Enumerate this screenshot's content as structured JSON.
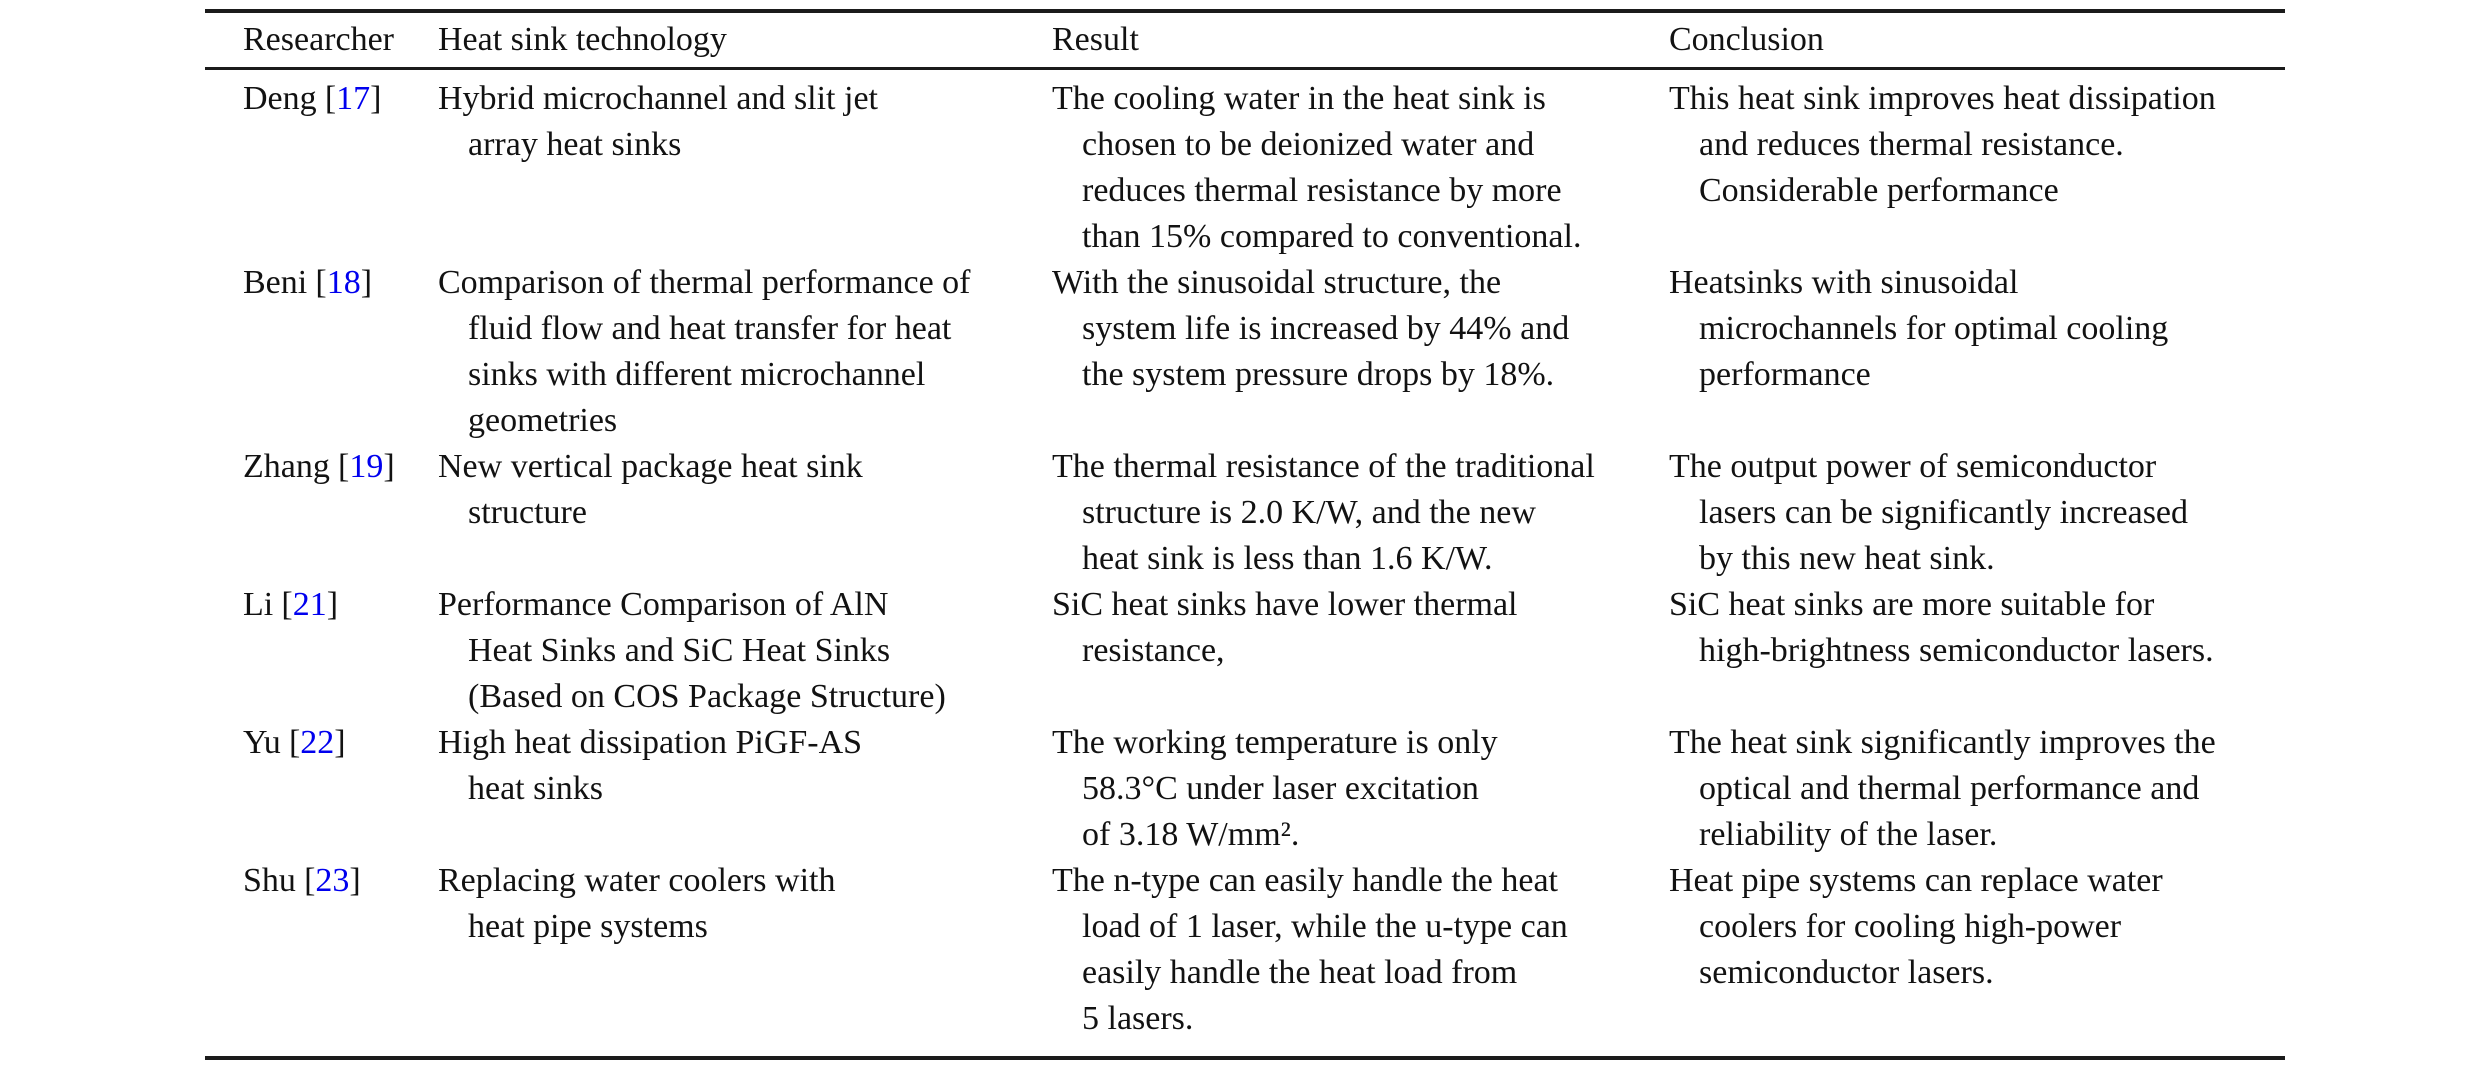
{
  "colors": {
    "reference_link": "#0000EE",
    "text": "#121212",
    "rule": "#1b1b1b"
  },
  "table": {
    "columns": [
      "Researcher",
      "Heat sink technology",
      "Result",
      "Conclusion"
    ],
    "ref_bracket_open": "[",
    "ref_bracket_close": "]",
    "rows": [
      {
        "researcher": "Deng",
        "ref": "17",
        "technology_lines": [
          "Hybrid microchannel and slit jet",
          "array heat sinks"
        ],
        "result_lines": [
          "The cooling water in the heat sink is",
          "chosen to be deionized water and",
          "reduces thermal resistance by more",
          "than 15% compared to conventional."
        ],
        "conclusion_lines": [
          "This heat sink improves heat dissipation",
          "and reduces thermal resistance.",
          "Considerable performance"
        ]
      },
      {
        "researcher": "Beni",
        "ref": "18",
        "technology_lines": [
          "Comparison of thermal performance of",
          "fluid flow and heat transfer for heat",
          "sinks with different microchannel",
          "geometries"
        ],
        "result_lines": [
          "With the sinusoidal structure, the",
          "system life is increased by 44% and",
          "the system pressure drops by 18%."
        ],
        "conclusion_lines": [
          "Heatsinks with sinusoidal",
          "microchannels for optimal cooling",
          "performance"
        ]
      },
      {
        "researcher": "Zhang",
        "ref": "19",
        "technology_lines": [
          "New vertical package heat sink",
          "structure"
        ],
        "result_lines": [
          "The thermal resistance of the traditional",
          "structure is 2.0 K/W, and the new",
          "heat sink is less than 1.6 K/W."
        ],
        "conclusion_lines": [
          "The output power of semiconductor",
          "lasers can be significantly increased",
          "by this new heat sink."
        ]
      },
      {
        "researcher": "Li",
        "ref": "21",
        "technology_lines": [
          "Performance Comparison of AlN",
          "Heat Sinks and SiC Heat Sinks",
          "(Based on COS Package Structure)"
        ],
        "result_lines": [
          "SiC heat sinks have lower thermal",
          "resistance,"
        ],
        "conclusion_lines": [
          "SiC heat sinks are more suitable for",
          "high-brightness semiconductor lasers."
        ]
      },
      {
        "researcher": "Yu",
        "ref": "22",
        "technology_lines": [
          "High heat dissipation PiGF-AS",
          "heat sinks"
        ],
        "result_lines": [
          "The working temperature is only",
          "58.3°C under laser excitation",
          "of 3.18 W/mm²."
        ],
        "conclusion_lines": [
          "The heat sink significantly improves the",
          "optical and thermal performance and",
          "reliability of the laser."
        ]
      },
      {
        "researcher": "Shu",
        "ref": "23",
        "technology_lines": [
          "Replacing water coolers with",
          "heat pipe systems"
        ],
        "result_lines": [
          "The n-type can easily handle the heat",
          "load of 1 laser, while the u-type can",
          "easily handle the heat load from",
          "5 lasers."
        ],
        "conclusion_lines": [
          "Heat pipe systems can replace water",
          "coolers for cooling high-power",
          "semiconductor lasers."
        ]
      }
    ]
  }
}
